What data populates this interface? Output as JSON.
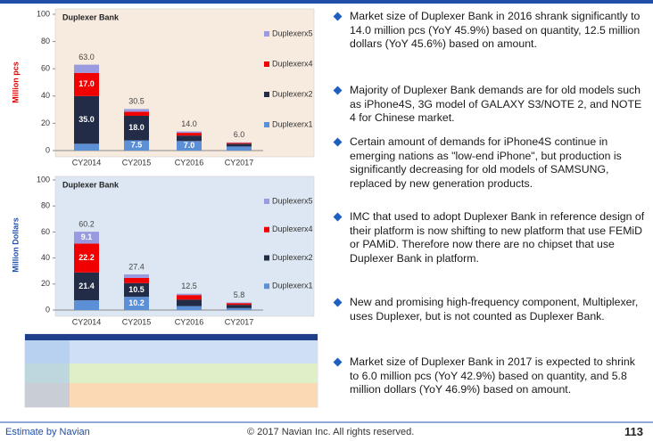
{
  "chart_data": [
    {
      "type": "bar",
      "stacked": true,
      "title": "Duplexer Bank",
      "ylabel": "Million pcs",
      "ylabel_color": "#e00000",
      "background": "#f7eadf",
      "categories": [
        "CY2014",
        "CY2015",
        "CY2016",
        "CY2017"
      ],
      "ylim": [
        0,
        100
      ],
      "yticks": [
        0,
        20,
        40,
        60,
        80,
        100
      ],
      "series": [
        {
          "name": "Duplexerx1",
          "color": "#5b8fd6",
          "values": [
            5,
            7.5,
            7,
            3
          ],
          "value_labels": [
            null,
            "7.5",
            "7.0",
            null
          ]
        },
        {
          "name": "Duplexerx2",
          "color": "#232c47",
          "values": [
            35,
            18,
            4,
            2
          ],
          "value_labels": [
            "35.0",
            "18.0",
            null,
            null
          ]
        },
        {
          "name": "Duplexerx4",
          "color": "#f00000",
          "values": [
            17,
            3,
            2,
            0.7
          ],
          "value_labels": [
            "17.0",
            null,
            null,
            null
          ]
        },
        {
          "name": "Duplexerx5",
          "color": "#9a9ae0",
          "values": [
            6,
            2,
            1,
            0.3
          ],
          "value_labels": [
            null,
            null,
            null,
            null
          ]
        }
      ],
      "totals": [
        "63.0",
        "30.5",
        "14.0",
        "6.0"
      ]
    },
    {
      "type": "bar",
      "stacked": true,
      "title": "Duplexer Bank",
      "ylabel": "Million Dollars",
      "ylabel_color": "#1f4fa8",
      "background": "#dde7f3",
      "categories": [
        "CY2014",
        "CY2015",
        "CY2016",
        "CY2017"
      ],
      "ylim": [
        0,
        100
      ],
      "yticks": [
        0,
        20,
        40,
        60,
        80,
        100
      ],
      "series": [
        {
          "name": "Duplexerx1",
          "color": "#5b8fd6",
          "values": [
            7.5,
            10.2,
            3,
            1.5
          ],
          "value_labels": [
            null,
            "10.2",
            null,
            null
          ]
        },
        {
          "name": "Duplexerx2",
          "color": "#232c47",
          "values": [
            21.4,
            10.5,
            5,
            2.5
          ],
          "value_labels": [
            "21.4",
            "10.5",
            null,
            null
          ]
        },
        {
          "name": "Duplexerx4",
          "color": "#f00000",
          "values": [
            22.2,
            4,
            3.5,
            1.3
          ],
          "value_labels": [
            "22.2",
            null,
            null,
            null
          ]
        },
        {
          "name": "Duplexerx5",
          "color": "#9a9ae0",
          "values": [
            9.1,
            2.7,
            1,
            0.5
          ],
          "value_labels": [
            "9.1",
            null,
            null,
            null
          ]
        }
      ],
      "totals": [
        "60.2",
        "27.4",
        "12.5",
        "5.8"
      ]
    }
  ],
  "bullets": [
    "Market size of Duplexer Bank in 2016 shrank significantly to 14.0 million pcs (YoY 45.9%) based on quantity, 12.5 million dollars (YoY 45.6%) based on amount.",
    "Majority of Duplexer Bank demands are for old models such as iPhone4S, 3G model of GALAXY S3/NOTE 2, and NOTE 4 for Chinese market.",
    "Certain amount of demands for iPhone4S continue in emerging nations as \"low-end iPhone\", but production is significantly decreasing for old models of SAMSUNG, replaced by new generation products.",
    "IMC that used to adopt Duplexer Bank in reference design of their platform is now shifting to new platform that use FEMiD or PAMiD. Therefore now there are no chipset that use Duplexer Bank in platform.",
    "New and promising high-frequency component, Multiplexer, uses Duplexer, but is not counted as Duplexer Bank.",
    "Market size of Duplexer Bank in 2017 is expected to shrink to 6.0 million pcs (YoY 42.9%) based on quantity, and 5.8 million dollars (YoY 46.9%) based on amount."
  ],
  "footer": {
    "source": "Estimate by Navian",
    "copyright": "© 2017 Navian Inc. All rights reserved.",
    "page": "113"
  }
}
